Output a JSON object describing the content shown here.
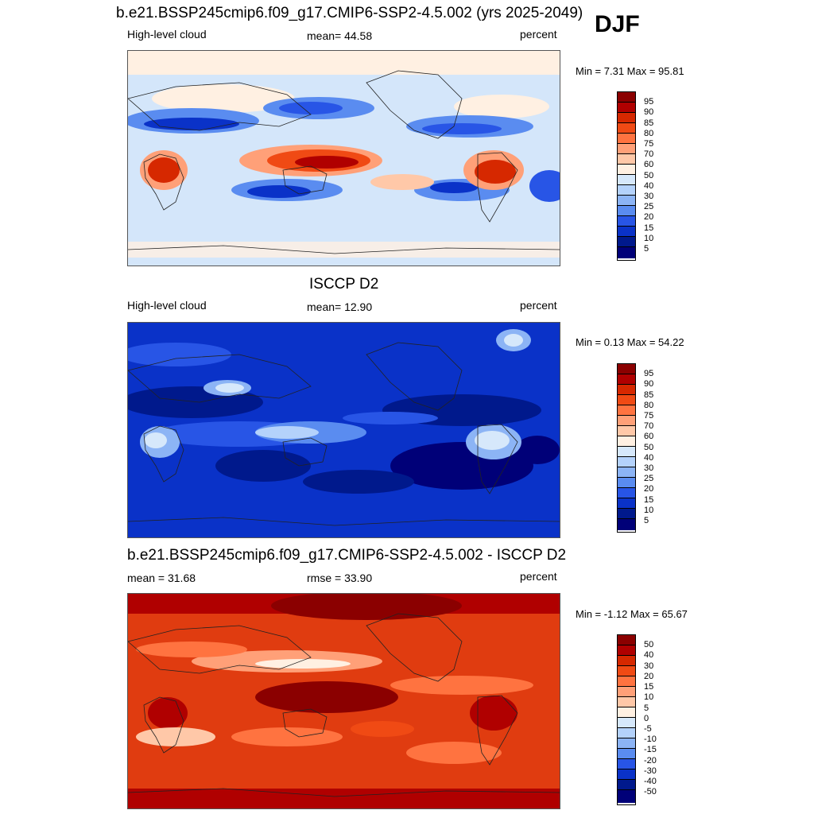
{
  "season": "DJF",
  "panels": [
    {
      "title": "b.e21.BSSP245cmip6.f09_g17.CMIP6-SSP2-4.5.002 (yrs 2025-2049)",
      "left_label": "High-level cloud",
      "stat": "mean=  44.58",
      "units": "percent",
      "minmax": "Min =   7.31 Max =  95.81",
      "levels": [
        "95",
        "90",
        "85",
        "80",
        "75",
        "70",
        "60",
        "50",
        "40",
        "30",
        "25",
        "20",
        "15",
        "10",
        "5"
      ],
      "colors": [
        "#8b0000",
        "#b00000",
        "#d62800",
        "#f04a14",
        "#ff7340",
        "#ffa078",
        "#ffc8a8",
        "#fff0e2",
        "#d6e8fb",
        "#b4d2fb",
        "#8cb4f5",
        "#5a8cf0",
        "#2855e6",
        "#0a32c8",
        "#00198c",
        "#000078"
      ],
      "background": "#d4e6fa"
    },
    {
      "title": "ISCCP D2",
      "left_label": "High-level cloud",
      "stat": "mean=  12.90",
      "units": "percent",
      "minmax": "Min =   0.13 Max =  54.22",
      "levels": [
        "95",
        "90",
        "85",
        "80",
        "75",
        "70",
        "60",
        "50",
        "40",
        "30",
        "25",
        "20",
        "15",
        "10",
        "5"
      ],
      "colors": [
        "#8b0000",
        "#b00000",
        "#d62800",
        "#f04a14",
        "#ff7340",
        "#ffa078",
        "#ffc8a8",
        "#fff0e2",
        "#d6e8fb",
        "#b4d2fb",
        "#8cb4f5",
        "#5a8cf0",
        "#2855e6",
        "#0a32c8",
        "#00198c",
        "#000078"
      ],
      "background": "#0a32c8"
    },
    {
      "title": "b.e21.BSSP245cmip6.f09_g17.CMIP6-SSP2-4.5.002 - ISCCP D2",
      "left_label": "mean =  31.68",
      "stat": "rmse =  33.90",
      "units": "percent",
      "minmax": "Min =  -1.12 Max =  65.67",
      "levels": [
        "50",
        "40",
        "30",
        "20",
        "15",
        "10",
        "5",
        "0",
        "-5",
        "-10",
        "-15",
        "-20",
        "-30",
        "-40",
        "-50"
      ],
      "colors": [
        "#8b0000",
        "#b00000",
        "#d62800",
        "#f04a14",
        "#ff7340",
        "#ffa078",
        "#ffc8a8",
        "#fff0e2",
        "#d6e8fb",
        "#b4d2fb",
        "#8cb4f5",
        "#5a8cf0",
        "#2855e6",
        "#0a32c8",
        "#00198c",
        "#000078"
      ],
      "background": "#e03c10"
    }
  ]
}
